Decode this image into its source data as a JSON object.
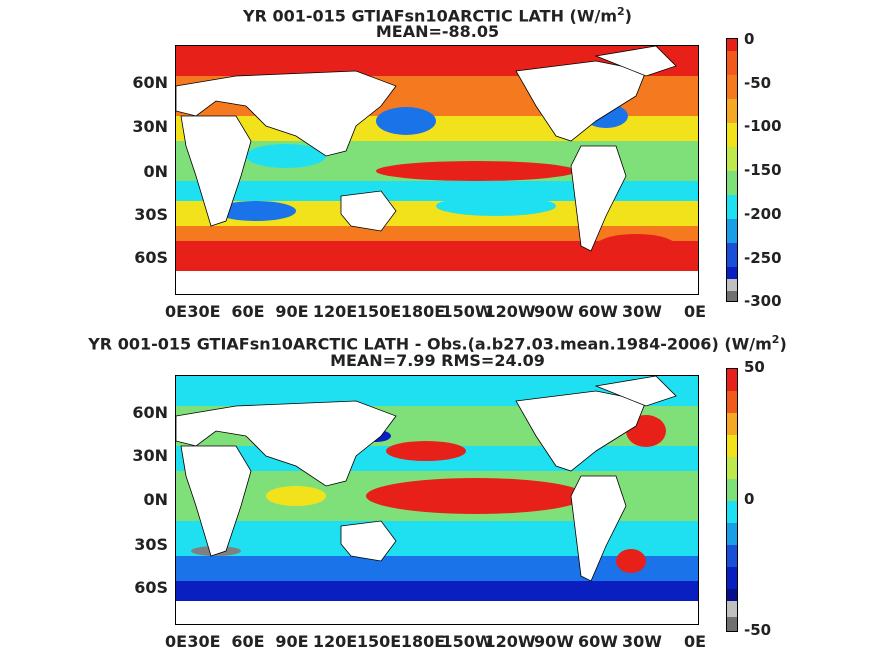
{
  "maps": [
    {
      "title_line1": "YR 001-015 GTIAFsn10ARCTIC  LATH (W/m",
      "title_sup": "2",
      "title_close": ")",
      "title_line2": "MEAN=-88.05",
      "colorbar_ticks": [
        "0",
        "-50",
        "-100",
        "-150",
        "-200",
        "-250",
        "-300"
      ],
      "colorbar_range": [
        -300,
        0
      ],
      "field": "latent heat flux"
    },
    {
      "title_line1": "YR 001-015 GTIAFsn10ARCTIC LATH - Obs.(a.b27.03.mean.1984-2006) (W/m",
      "title_sup": "2",
      "title_close": ")",
      "title_line2": "MEAN=7.99 RMS=24.09",
      "colorbar_ticks": [
        "50",
        "0",
        "-50"
      ],
      "colorbar_range": [
        -50,
        50
      ],
      "field": "difference from observations"
    }
  ],
  "lat_labels": [
    "60N",
    "30N",
    "0N",
    "30S",
    "60S"
  ],
  "lon_labels": [
    "0E",
    "30E",
    "60E",
    "90E",
    "120E",
    "150E",
    "180E",
    "150W",
    "120W",
    "90W",
    "60W",
    "30W",
    "0E"
  ],
  "colors": {
    "land": "#ffffff",
    "red": "#e8201a",
    "orange": "#f57a1f",
    "yellow": "#f2e21b",
    "green": "#7fe07a",
    "cyan": "#1fe0f0",
    "blue": "#1a73e8",
    "navy": "#0a1fbf",
    "grey": "#808080"
  }
}
